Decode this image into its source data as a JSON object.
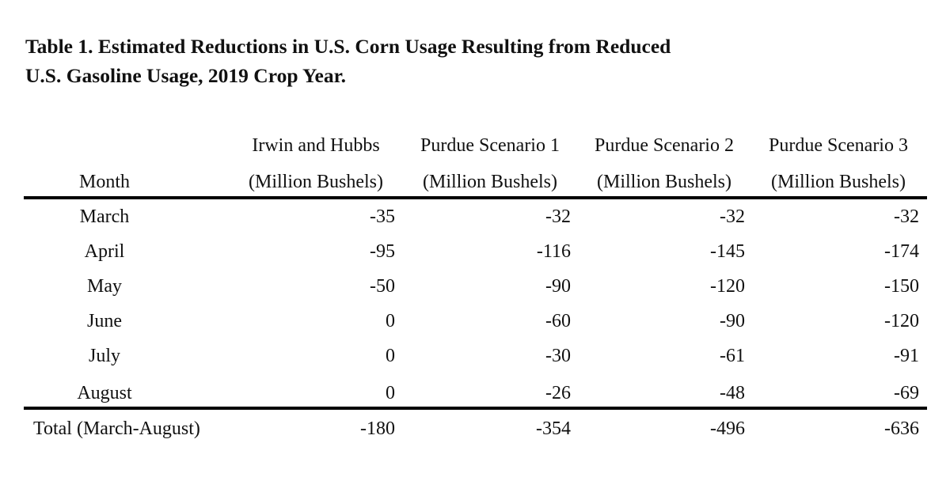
{
  "title": {
    "line1": "Table 1. Estimated Reductions in U.S. Corn Usage Resulting from Reduced",
    "line2": "U.S. Gasoline Usage, 2019 Crop Year."
  },
  "header": {
    "row1": [
      "",
      "Irwin  and Hubbs",
      "Purdue Scenario 1",
      "Purdue Scenario 2",
      "Purdue Scenario 3"
    ],
    "row2": [
      "Month",
      "(Million Bushels)",
      "(Million Bushels)",
      "(Million Bushels)",
      "(Million Bushels)"
    ]
  },
  "rows": [
    [
      "March",
      "-35",
      "-32",
      "-32",
      "-32"
    ],
    [
      "April",
      "-95",
      "-116",
      "-145",
      "-174"
    ],
    [
      "May",
      "-50",
      "-90",
      "-120",
      "-150"
    ],
    [
      "June",
      "0",
      "-60",
      "-90",
      "-120"
    ],
    [
      "July",
      "0",
      "-30",
      "-61",
      "-91"
    ],
    [
      "August",
      "0",
      "-26",
      "-48",
      "-69"
    ]
  ],
  "total": [
    "Total (March-August)",
    "-180",
    "-354",
    "-496",
    "-636"
  ]
}
